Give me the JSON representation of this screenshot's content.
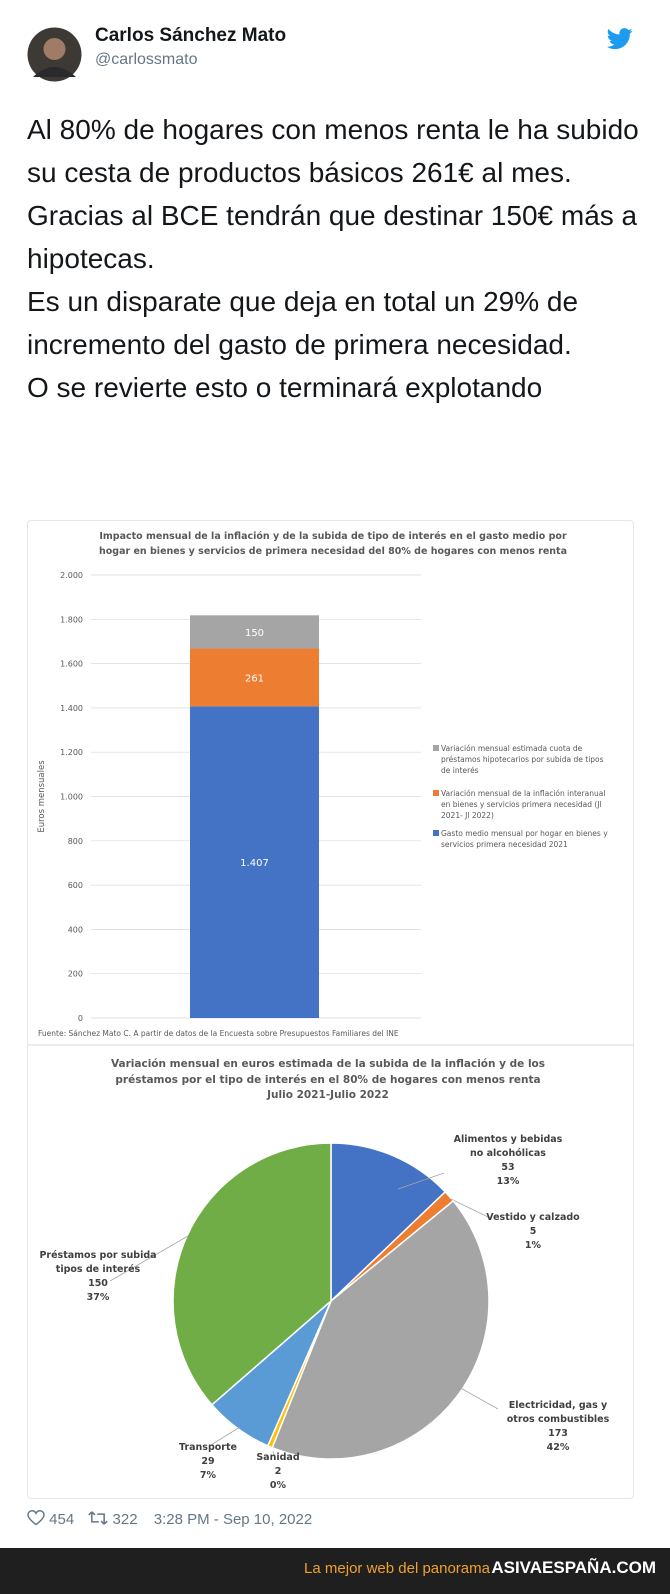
{
  "tweet": {
    "name": "Carlos Sánchez Mato",
    "handle": "@carlossmato",
    "paragraphs": [
      "Al 80% de hogares con menos renta le ha subido su cesta de productos básicos 261€ al mes.",
      "Gracias al BCE tendrán que destinar 150€ más a hipotecas.",
      "Es un disparate que deja en total un 29% de incremento del gasto de primera necesidad.",
      "O se revierte esto o terminará explotando"
    ],
    "likes": "454",
    "retweets": "322",
    "timestamp": "3:28 PM - Sep 10, 2022"
  },
  "banner": {
    "tagline": "La mejor web del panorama",
    "site": "ASIVAESPAÑA.COM"
  },
  "chart_data": [
    {
      "type": "stacked-bar",
      "title": "Impacto mensual de la inflación y de la subida de tipo de interés en el gasto medio por hogar en bienes y servicios de primera necesidad del 80% de hogares con menos renta",
      "ylabel": "Euros mensuales",
      "source": "Fuente: Sánchez Mato C.  A partir de datos de la Encuesta sobre Presupuestos Familiares del INE",
      "categories": [
        null
      ],
      "series": [
        {
          "name": "Gasto medio mensual por hogar en bienes y servicios primera necesidad 2021",
          "color": "#4472c4",
          "values": [
            1407
          ],
          "value_labels": [
            "1.407"
          ]
        },
        {
          "name": "Variación mensual de la inflación interanual en bienes y servicios primera necesidad (Jl 2021- Jl 2022)",
          "color": "#ed7d31",
          "values": [
            261
          ]
        },
        {
          "name": "Variación mensual estimada cuota de préstamos hipotecarios por subida de tipos de interés",
          "color": "#a5a5a5",
          "values": [
            150
          ]
        }
      ],
      "ylim": [
        0,
        2000
      ],
      "yticks": [
        0,
        200,
        400,
        600,
        800,
        {
          "value": 1000,
          "label": "1.000"
        },
        {
          "value": 1200,
          "label": "1.200"
        },
        {
          "value": 1400,
          "label": "1.400"
        },
        {
          "value": 1600,
          "label": "1.600"
        },
        {
          "value": 1800,
          "label": "1.800"
        },
        {
          "value": 2000,
          "label": "2.000"
        }
      ],
      "grid": true,
      "legend": "right"
    },
    {
      "type": "pie",
      "title": "Variación mensual en euros estimada de la subida de la inflación y de los préstamos por el tipo de interés en el 80% de hogares con menos renta",
      "subtitle": "Julio 2021-Julio 2022",
      "categories": [
        "Alimentos y bebidas no alcohólicas",
        "Vestido y calzado",
        "Electricidad, gas y otros combustibles",
        "Sanidad",
        "Transporte",
        "Préstamos por subida tipos de interés"
      ],
      "values": [
        53,
        5,
        173,
        2,
        29,
        150
      ],
      "percents": [
        13,
        1,
        42,
        0,
        7,
        37
      ],
      "percent_labels": [
        "13%",
        "1%",
        "42%",
        "0%",
        "7%",
        "37%"
      ],
      "colors": [
        "#4472c4",
        "#ed7d31",
        "#a5a5a5",
        "#ffc000",
        "#5b9bd5",
        "#70ad47"
      ]
    }
  ]
}
